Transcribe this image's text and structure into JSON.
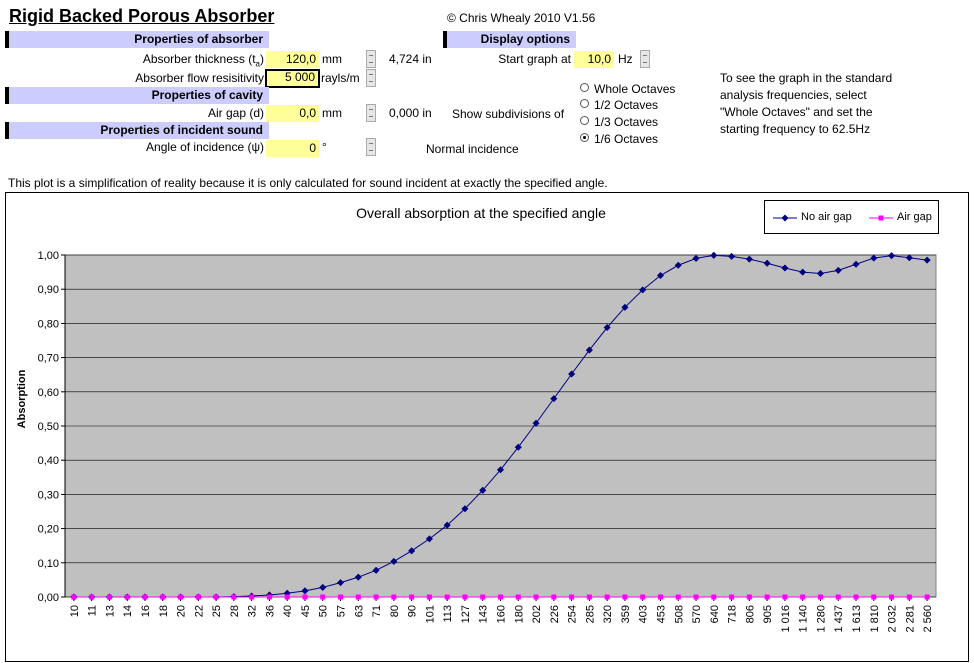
{
  "header": {
    "title": "Rigid Backed Porous Absorber",
    "copyright": "© Chris Whealy 2010  V1.56"
  },
  "absorber": {
    "section_label": "Properties of absorber",
    "thickness_label": "Absorber thickness (t",
    "thickness_sub": "a",
    "thickness_close": ")",
    "thickness_value": "120,0",
    "thickness_unit": "mm",
    "thickness_inches": "4,724  in",
    "resistivity_label": "Absorber flow resisitivity",
    "resistivity_value": "5 000",
    "resistivity_unit": "rayls/m"
  },
  "cavity": {
    "section_label": "Properties of cavity",
    "air_gap_label": "Air gap (d)",
    "air_gap_value": "0,0",
    "air_gap_unit": "mm",
    "air_gap_inches": "0,000  in"
  },
  "incident": {
    "section_label": "Properties of incident sound",
    "angle_label": "Angle of incidence (ψ)",
    "angle_value": "0",
    "angle_unit": "°",
    "incidence_text": "Normal incidence"
  },
  "display": {
    "section_label": "Display options",
    "start_label": "Start graph at",
    "start_value": "10,0",
    "start_unit": "Hz",
    "subdiv_label": "Show subdivisions of",
    "options": [
      "Whole Octaves",
      "1/2 Octaves",
      "1/3 Octaves",
      "1/6 Octaves"
    ],
    "selected_option": 3,
    "help_lines": [
      "To see the graph in the standard",
      "analysis frequencies, select",
      "\"Whole Octaves\" and set the",
      "starting frequency to 62.5Hz"
    ]
  },
  "note": "This plot is a simplification of reality because it is only calculated for sound incident at exactly the specified angle.",
  "colors": {
    "series1": "#000080",
    "series2": "#ff00ff",
    "plot_bg": "#c0c0c0",
    "header_bg": "#ccccff",
    "input_bg": "#ffff99"
  },
  "chart_data": {
    "type": "line",
    "title": "Overall absorption at the specified angle",
    "ylabel": "Absorption",
    "xlabel": "",
    "ylim": [
      0,
      1
    ],
    "yticks": [
      "0,00",
      "0,10",
      "0,20",
      "0,30",
      "0,40",
      "0,50",
      "0,60",
      "0,70",
      "0,80",
      "0,90",
      "1,00"
    ],
    "legend_position": "top-right",
    "categories": [
      "10",
      "11",
      "13",
      "14",
      "16",
      "18",
      "20",
      "22",
      "25",
      "28",
      "32",
      "36",
      "40",
      "45",
      "50",
      "57",
      "63",
      "71",
      "80",
      "90",
      "101",
      "113",
      "127",
      "143",
      "160",
      "180",
      "202",
      "226",
      "254",
      "285",
      "320",
      "359",
      "403",
      "453",
      "508",
      "570",
      "640",
      "718",
      "806",
      "905",
      "1 016",
      "1 140",
      "1 280",
      "1 437",
      "1 613",
      "1 810",
      "2 032",
      "2 281",
      "2 560"
    ],
    "series": [
      {
        "name": "No air gap",
        "values": [
          0.0,
          0.0,
          0.0,
          0.0,
          0.0,
          0.0,
          0.0,
          0.0,
          0.0,
          0.001,
          0.003,
          0.006,
          0.011,
          0.018,
          0.028,
          0.042,
          0.058,
          0.078,
          0.104,
          0.135,
          0.17,
          0.21,
          0.258,
          0.312,
          0.372,
          0.438,
          0.508,
          0.58,
          0.652,
          0.722,
          0.788,
          0.847,
          0.898,
          0.94,
          0.97,
          0.99,
          0.999,
          0.996,
          0.988,
          0.976,
          0.962,
          0.95,
          0.946,
          0.955,
          0.973,
          0.991,
          0.998,
          0.992,
          0.985
        ]
      },
      {
        "name": "Air gap",
        "values": [
          0,
          0,
          0,
          0,
          0,
          0,
          0,
          0,
          0,
          0,
          0,
          0,
          0,
          0,
          0,
          0,
          0,
          0,
          0,
          0,
          0,
          0,
          0,
          0,
          0,
          0,
          0,
          0,
          0,
          0,
          0,
          0,
          0,
          0,
          0,
          0,
          0,
          0,
          0,
          0,
          0,
          0,
          0,
          0,
          0,
          0,
          0,
          0,
          0
        ]
      }
    ]
  }
}
